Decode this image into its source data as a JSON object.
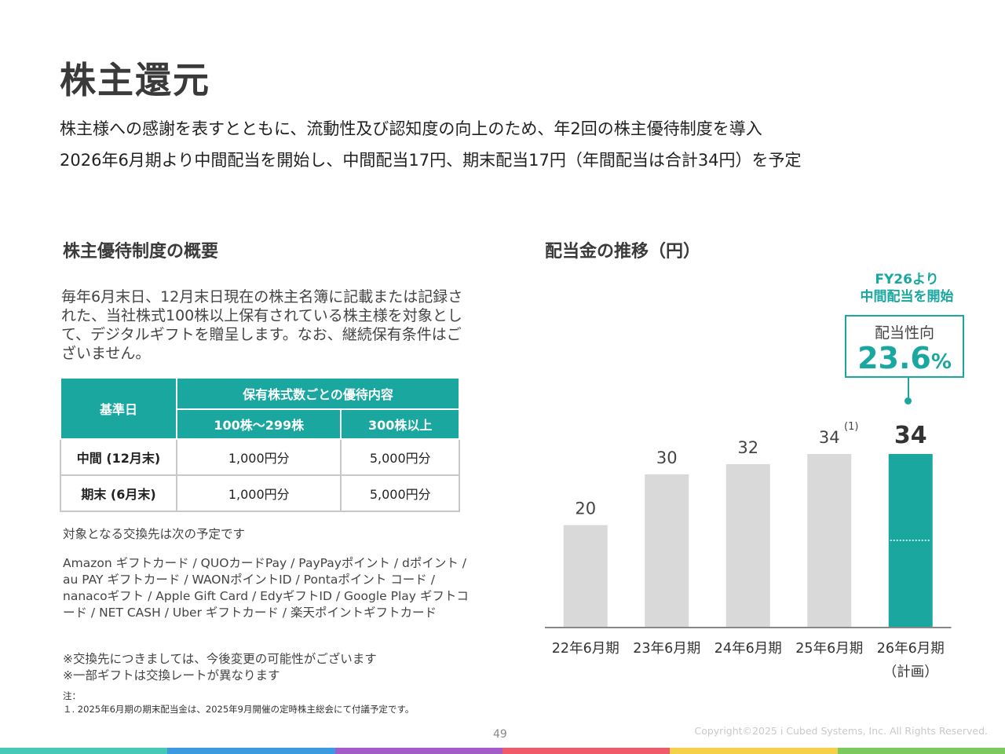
{
  "title": "株主還元",
  "lead": {
    "line1": "株主様への感謝を表すとともに、流動性及び認知度の向上のため、年2回の株主優待制度を導入",
    "line2": "2026年6月期より中間配当を開始し、中間配当17円、期末配当17円（年間配当は合計34円）を予定"
  },
  "left": {
    "heading": "株主優待制度の概要",
    "description": "毎年6月末日、12月末日現在の株主名簿に記載または記録された、当社株式100株以上保有されている株主様を対象として、デジタルギフトを贈呈します。なお、継続保有条件はございません。",
    "table": {
      "col_header_base": "基準日",
      "col_header_group": "保有株式数ごとの優待内容",
      "col_header_a": "100株～299株",
      "col_header_b": "300株以上",
      "rows": [
        {
          "label": "中間 (12月末)",
          "a": "1,000円分",
          "b": "5,000円分"
        },
        {
          "label": "期末 (6月末)",
          "a": "1,000円分",
          "b": "5,000円分"
        }
      ]
    },
    "exchange_intro": "対象となる交換先は次の予定です",
    "exchange_list": "Amazon ギフトカード / QUOカードPay / PayPayポイント / dポイント / au PAY ギフトカード / WAONポイントID / Pontaポイント コード / nanacoギフト / Apple Gift Card / EdyギフトID / Google Play ギフトコード / NET CASH / Uber ギフトカード / 楽天ポイントギフトカード",
    "caution1": "※交換先につきましては、今後変更の可能性がございます",
    "caution2": "※一部ギフトは交換レートが異なります",
    "note_label": "注：",
    "note1": "１. 2025年6月期の期末配当金は、2025年9月開催の定時株主総会にて付議予定です。"
  },
  "right": {
    "heading": "配当金の推移（円）",
    "callout_head1": "FY26より",
    "callout_head2": "中間配当を開始",
    "callout_label": "配当性向",
    "callout_value": "23.6",
    "callout_unit": "%",
    "footnote_marker": "(1)"
  },
  "chart_data": {
    "type": "bar",
    "categories": [
      "22年6月期",
      "23年6月期",
      "24年6月期",
      "25年6月期",
      "26年6月期"
    ],
    "category_sub": [
      "",
      "",
      "",
      "",
      "（計画）"
    ],
    "values": [
      20,
      30,
      32,
      34,
      34
    ],
    "labels": [
      "20",
      "30",
      "32",
      "34",
      "34"
    ],
    "highlight_index": 4,
    "colors": {
      "normal": "#d9d9d9",
      "highlight": "#1aa7a0"
    },
    "ylim": [
      0,
      38
    ],
    "split_line_value": 17
  },
  "footer": {
    "page": "49",
    "copyright": "Copyright©2025 i Cubed Systems, Inc. All Rights Reserved."
  },
  "colorbar": [
    "#47c9b8",
    "#3c9be0",
    "#a35cc8",
    "#ef5b6a",
    "#f5d14a",
    "#7cc95e"
  ]
}
